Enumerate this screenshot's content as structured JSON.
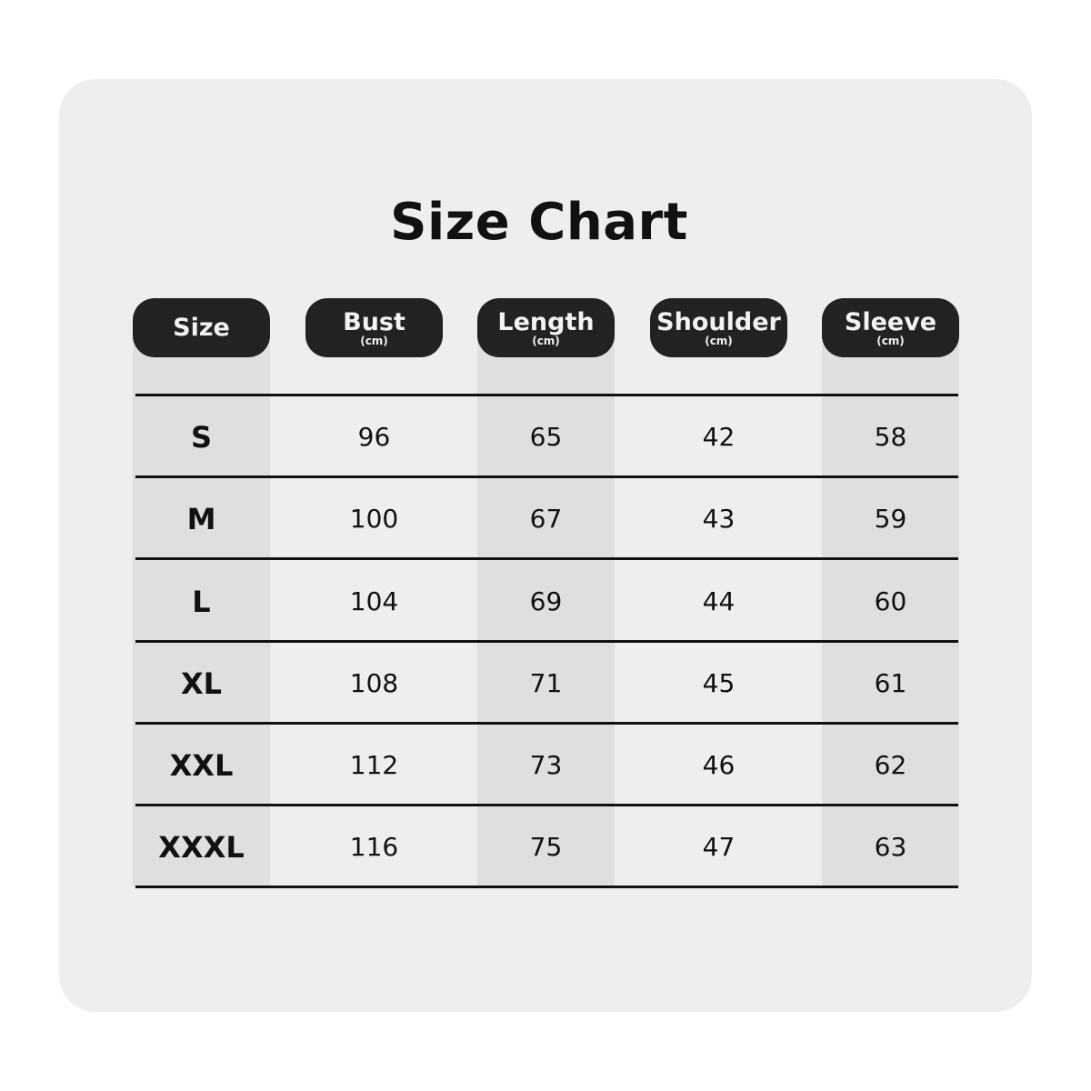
{
  "title": "Size Chart",
  "colors": {
    "card": "#eeeeee",
    "stripe": "#dfdfdf",
    "header_pill": "#222222",
    "text": "#111111"
  },
  "columns": [
    {
      "label": "Size",
      "unit": ""
    },
    {
      "label": "Bust",
      "unit": "(cm)"
    },
    {
      "label": "Length",
      "unit": "(cm)"
    },
    {
      "label": "Shoulder",
      "unit": "(cm)"
    },
    {
      "label": "Sleeve",
      "unit": "(cm)"
    }
  ],
  "rows": [
    [
      "S",
      "96",
      "65",
      "42",
      "58"
    ],
    [
      "M",
      "100",
      "67",
      "43",
      "59"
    ],
    [
      "L",
      "104",
      "69",
      "44",
      "60"
    ],
    [
      "XL",
      "108",
      "71",
      "45",
      "61"
    ],
    [
      "XXL",
      "112",
      "73",
      "46",
      "62"
    ],
    [
      "XXXL",
      "116",
      "75",
      "47",
      "63"
    ]
  ]
}
